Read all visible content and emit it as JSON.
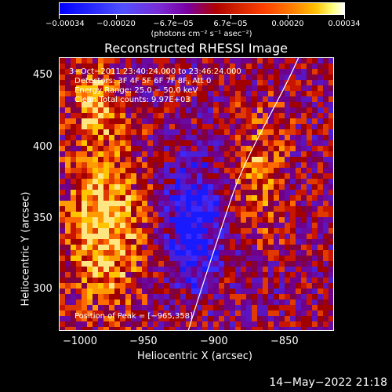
{
  "colorbar": {
    "tick_labels": [
      "−0.00034",
      "−0.00020",
      "−6.7e−05",
      "6.7e−05",
      "0.00020",
      "0.00034"
    ],
    "units": "(photons cm⁻² s⁻¹ asec⁻²)"
  },
  "title": "Reconstructed RHESSI Image",
  "info": {
    "time": "3−Oct−2011 23:40:24.000 to 23:46:24.000",
    "detectors": "Detectors: 3F 4F 5F 6F 7F 8F, Att 0",
    "energy": "Energy Range: 25.0 − 50.0 keV",
    "clean": "Clean     Total counts: 9.97E+03",
    "peak": "Position of Peak = [−965,358]"
  },
  "axes": {
    "xlabel": "Heliocentric X (arcsec)",
    "ylabel": "Heliocentric Y (arcsec)",
    "xticks": [
      "−1000",
      "−950",
      "−900",
      "−850"
    ],
    "yticks": [
      "300",
      "350",
      "400",
      "450"
    ]
  },
  "timestamp": "14−May−2022 21:18"
}
